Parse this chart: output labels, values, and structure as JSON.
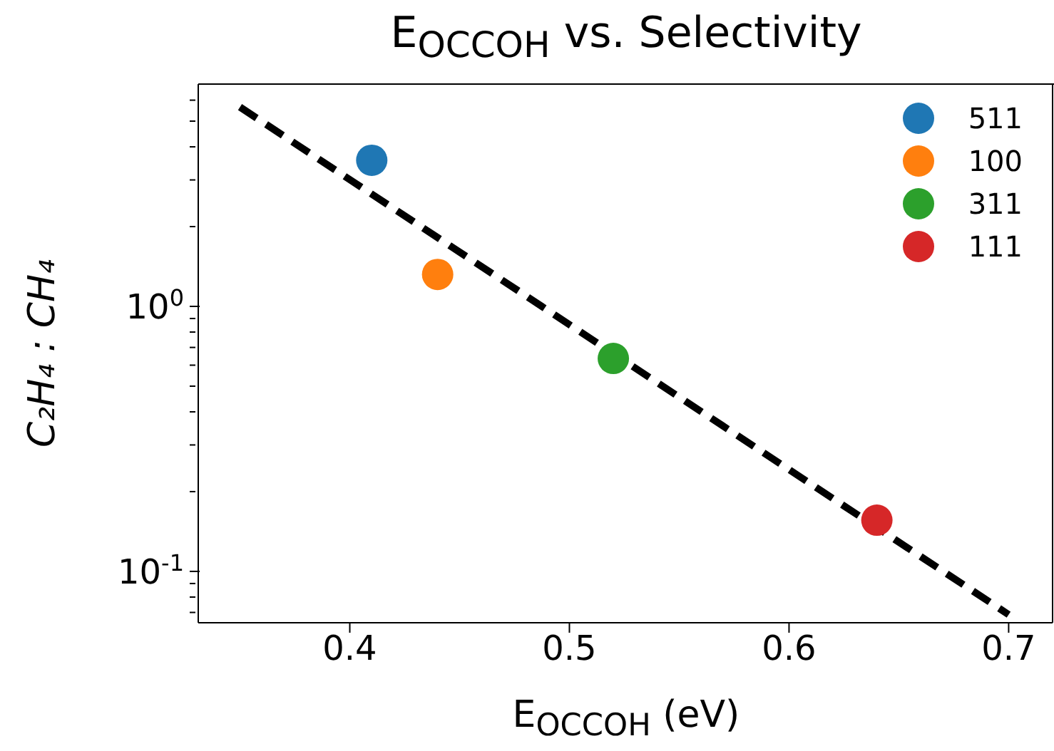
{
  "chart_data": {
    "type": "scatter",
    "title": "E$_{OCCOH}$ vs. Selectivity",
    "xlabel": "E$_{OCCOH}$ (eV)",
    "ylabel": "C₂H₄ : CH₄",
    "log": "y",
    "xlim": [
      0.331,
      0.72
    ],
    "xticks": [
      0.4,
      0.5,
      0.6,
      0.7
    ],
    "ylim": [
      0.064,
      6.9
    ],
    "yticks": [
      {
        "value": 0.07,
        "label": null
      },
      {
        "value": 0.08,
        "label": null
      },
      {
        "value": 0.09,
        "label": null
      },
      {
        "value": 0.1,
        "label": "10$^{-1}$"
      },
      {
        "value": 0.2,
        "label": null
      },
      {
        "value": 0.3,
        "label": null
      },
      {
        "value": 0.4,
        "label": null
      },
      {
        "value": 0.5,
        "label": null
      },
      {
        "value": 0.6,
        "label": null
      },
      {
        "value": 0.7,
        "label": null
      },
      {
        "value": 0.8,
        "label": null
      },
      {
        "value": 0.9,
        "label": null
      },
      {
        "value": 1,
        "label": "10$^{0}$"
      },
      {
        "value": 2,
        "label": null
      },
      {
        "value": 3,
        "label": null
      },
      {
        "value": 4,
        "label": null
      },
      {
        "value": 5,
        "label": null
      },
      {
        "value": 6,
        "label": null
      }
    ],
    "legend": "top right",
    "marker": "circle",
    "series": [
      {
        "name": "511",
        "color": "#1f77b4",
        "x": [
          0.41
        ],
        "values": [
          3.56
        ]
      },
      {
        "name": "100",
        "color": "#ff7f0e",
        "x": [
          0.44
        ],
        "values": [
          1.32
        ]
      },
      {
        "name": "311",
        "color": "#2ca02c",
        "x": [
          0.52
        ],
        "values": [
          0.636
        ]
      },
      {
        "name": "111",
        "color": "#d62728",
        "x": [
          0.64
        ],
        "values": [
          0.156
        ]
      },
      {
        "type": "line",
        "color": "#000000",
        "line_style": "dashed",
        "marker": "none",
        "x": [
          0.35,
          0.7
        ],
        "values": [
          5.65,
          0.0687
        ]
      }
    ]
  }
}
